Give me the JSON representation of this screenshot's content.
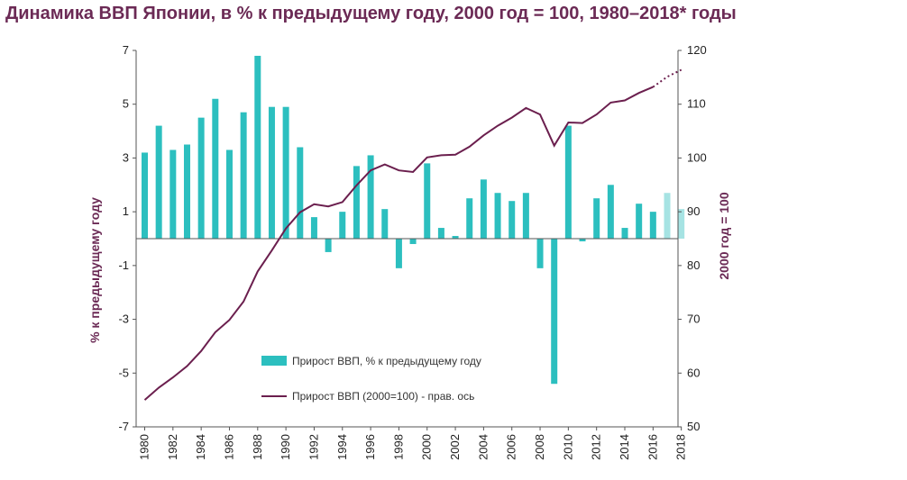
{
  "title": "Динамика ВВП Японии, в % к предыдущему году, 2000 год = 100, 1980–2018* годы",
  "chart_data": {
    "type": "bar",
    "title": "Динамика ВВП Японии, в % к предыдущему году, 2000 год = 100, 1980–2018* годы",
    "ylabel": "% к предыдущему  году",
    "y2label": "2000 год = 100",
    "ylim": [
      -7,
      7
    ],
    "y2lim": [
      50,
      120
    ],
    "yticks": [
      "7",
      "5",
      "3",
      "1",
      "-1",
      "-3",
      "-5",
      "-7"
    ],
    "y2ticks": [
      "120",
      "110",
      "100",
      "90",
      "80",
      "70",
      "60",
      "50"
    ],
    "xtick_labels": [
      "1980",
      "1982",
      "1984",
      "1986",
      "1988",
      "1990",
      "1992",
      "1994",
      "1996",
      "1998",
      "2000",
      "2002",
      "2004",
      "2006",
      "2008",
      "2010",
      "2012",
      "2014",
      "2016",
      "2018"
    ],
    "legend_position": "bottom-center",
    "colors": {
      "bar": "#2cbfbf",
      "bar_forecast": "#a6e3e3",
      "line": "#6b1f4e",
      "title": "#6b2a55"
    },
    "series": [
      {
        "name": "Прирост ВВП, % к предыдущему году",
        "type": "bar",
        "axis": "left",
        "x": [
          1980,
          1981,
          1982,
          1983,
          1984,
          1985,
          1986,
          1987,
          1988,
          1989,
          1990,
          1991,
          1992,
          1993,
          1994,
          1995,
          1996,
          1997,
          1998,
          1999,
          2000,
          2001,
          2002,
          2003,
          2004,
          2005,
          2006,
          2007,
          2008,
          2009,
          2010,
          2011,
          2012,
          2013,
          2014,
          2015,
          2016,
          2017,
          2018
        ],
        "values": [
          3.2,
          4.2,
          3.3,
          3.5,
          4.5,
          5.2,
          3.3,
          4.7,
          6.8,
          4.9,
          4.9,
          3.4,
          0.8,
          -0.5,
          1.0,
          2.7,
          3.1,
          1.1,
          -1.1,
          -0.2,
          2.8,
          0.4,
          0.1,
          1.5,
          2.2,
          1.7,
          1.4,
          1.7,
          -1.1,
          -5.4,
          4.2,
          -0.1,
          1.5,
          2.0,
          0.4,
          1.3,
          1.0,
          1.7,
          1.1
        ],
        "forecast_from": 2017
      },
      {
        "name": "Прирост ВВП (2000=100) - прав. ось",
        "type": "line",
        "axis": "right",
        "x": [
          1980,
          1981,
          1982,
          1983,
          1984,
          1985,
          1986,
          1987,
          1988,
          1989,
          1990,
          1991,
          1992,
          1993,
          1994,
          1995,
          1996,
          1997,
          1998,
          1999,
          2000,
          2001,
          2002,
          2003,
          2004,
          2005,
          2006,
          2007,
          2008,
          2009,
          2010,
          2011,
          2012,
          2013,
          2014,
          2015,
          2016,
          2017,
          2018
        ],
        "values": [
          55.0,
          57.3,
          59.2,
          61.3,
          64.1,
          67.6,
          69.9,
          73.3,
          78.9,
          82.8,
          86.9,
          89.9,
          91.4,
          91.0,
          91.8,
          94.9,
          97.7,
          98.8,
          97.7,
          97.4,
          100.1,
          100.5,
          100.6,
          102.1,
          104.2,
          106.0,
          107.5,
          109.3,
          108.1,
          102.3,
          106.6,
          106.5,
          108.1,
          110.3,
          110.7,
          112.1,
          113.2,
          115.1,
          116.4
        ],
        "forecast_from": 2016
      }
    ]
  }
}
